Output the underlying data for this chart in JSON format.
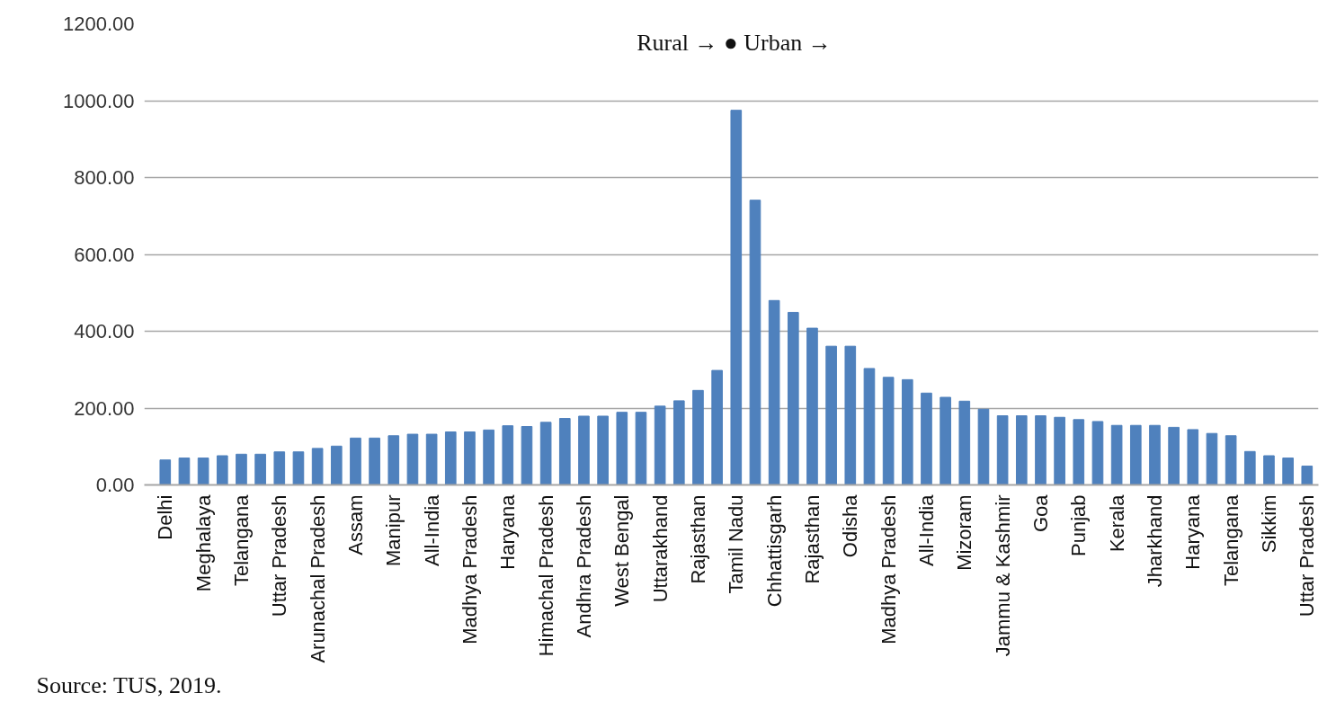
{
  "chart_data": {
    "type": "bar",
    "categories": [
      "Delhi",
      null,
      "Meghalaya",
      null,
      "Telangana",
      null,
      "Uttar Pradesh",
      null,
      "Arunachal Pradesh",
      null,
      "Assam",
      null,
      "Manipur",
      null,
      "All-India",
      null,
      "Madhya Pradesh",
      null,
      "Haryana",
      null,
      "Himachal Pradesh",
      null,
      "Andhra Pradesh",
      null,
      "West Bengal",
      null,
      "Uttarakhand",
      null,
      "Rajasthan",
      null,
      "Tamil Nadu",
      null,
      "Chhattisgarh",
      null,
      "Rajasthan",
      null,
      "Odisha",
      null,
      "Madhya Pradesh",
      null,
      "All-India",
      null,
      "Mizoram",
      null,
      "Jammu & Kashmir",
      null,
      "Goa",
      null,
      "Punjab",
      null,
      "Kerala",
      null,
      "Jharkhand",
      null,
      "Haryana",
      null,
      "Telangana",
      null,
      "Sikkim",
      null,
      "Uttar Pradesh"
    ],
    "values": [
      65,
      70,
      70,
      76,
      80,
      80,
      86,
      86,
      95,
      101,
      122,
      122,
      128,
      132,
      132,
      138,
      138,
      143,
      154,
      152,
      163,
      173,
      179,
      179,
      189,
      189,
      205,
      219,
      246,
      298,
      975,
      741,
      480,
      449,
      408,
      361,
      361,
      303,
      280,
      274,
      239,
      228,
      218,
      197,
      180,
      180,
      180,
      176,
      170,
      165,
      155,
      155,
      155,
      150,
      144,
      134,
      128,
      87,
      76,
      70,
      49
    ],
    "color": "#4f81bd",
    "ylim": [
      0,
      1200
    ],
    "yticks": [
      {
        "value": 0,
        "label": "0.00"
      },
      {
        "value": 200,
        "label": "200.00"
      },
      {
        "value": 400,
        "label": "400.00"
      },
      {
        "value": 600,
        "label": "600.00"
      },
      {
        "value": 800,
        "label": "800.00"
      },
      {
        "value": 1000,
        "label": "1000.00"
      },
      {
        "value": 1200,
        "label": "1200.00"
      }
    ],
    "grid": "y",
    "annotations": [
      "Rural → ● Urban →",
      "Source: TUS, 2019."
    ]
  }
}
